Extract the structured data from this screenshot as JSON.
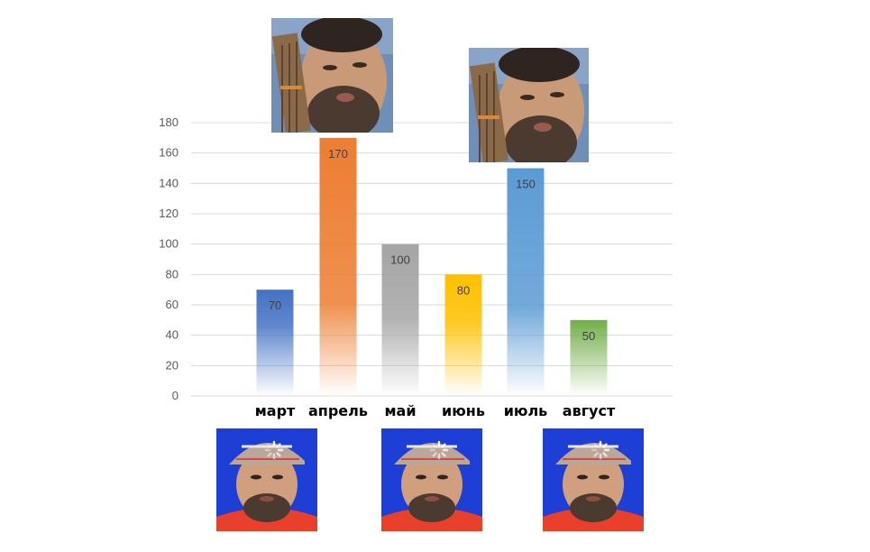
{
  "chart_data": {
    "type": "bar",
    "categories": [
      "март",
      "апрель",
      "май",
      "июнь",
      "июль",
      "август"
    ],
    "values": [
      70,
      170,
      100,
      80,
      150,
      50
    ],
    "colors": [
      "#4472C4",
      "#ED7D31",
      "#A5A5A5",
      "#FFC000",
      "#5B9BD5",
      "#70AD47"
    ],
    "ylim": [
      0,
      180
    ],
    "yticks": [
      "0",
      "20",
      "40",
      "60",
      "80",
      "100",
      "120",
      "140",
      "160",
      "180"
    ],
    "data_labels": [
      "70",
      "170",
      "100",
      "80",
      "150",
      "50"
    ],
    "grid": true,
    "gridline_color": "#D9D9D9",
    "legend": "none",
    "title": "",
    "xlabel": "",
    "ylabel": "",
    "bar_style": "gradient-fade-to-white-at-base"
  },
  "photos": [
    {
      "name": "photo-man-with-guitar-neck",
      "description_icon": "face-photo-icon"
    },
    {
      "name": "photo-man-with-guitar-neck",
      "description_icon": "face-photo-icon"
    },
    {
      "name": "photo-man-in-cap",
      "description_icon": "face-photo-icon"
    },
    {
      "name": "photo-man-in-cap",
      "description_icon": "face-photo-icon"
    },
    {
      "name": "photo-man-in-cap",
      "description_icon": "face-photo-icon"
    }
  ],
  "overlay_icon": "loading-spinner-icon",
  "accent_colors": {
    "cap_background": "#1E3FD6",
    "shirt": "#E8402A",
    "wall": "#3C6EA8"
  }
}
